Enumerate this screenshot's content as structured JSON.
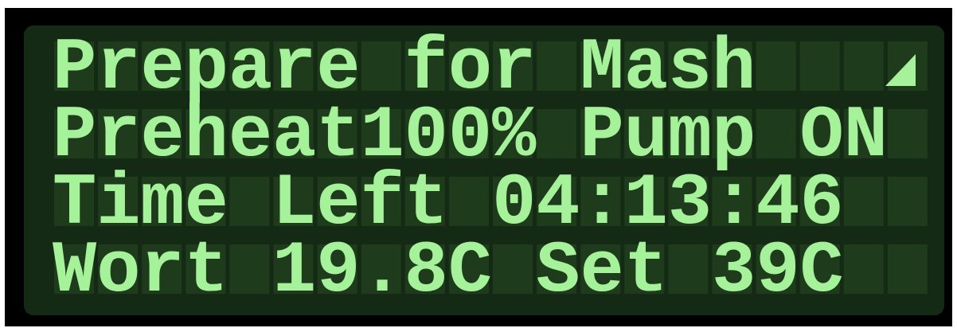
{
  "lcd": {
    "lines": [
      "Prepare for Mash",
      "Preheat100% Pump ON",
      "Time Left 04:13:46",
      "Wort 19.8C Set 39C"
    ]
  }
}
